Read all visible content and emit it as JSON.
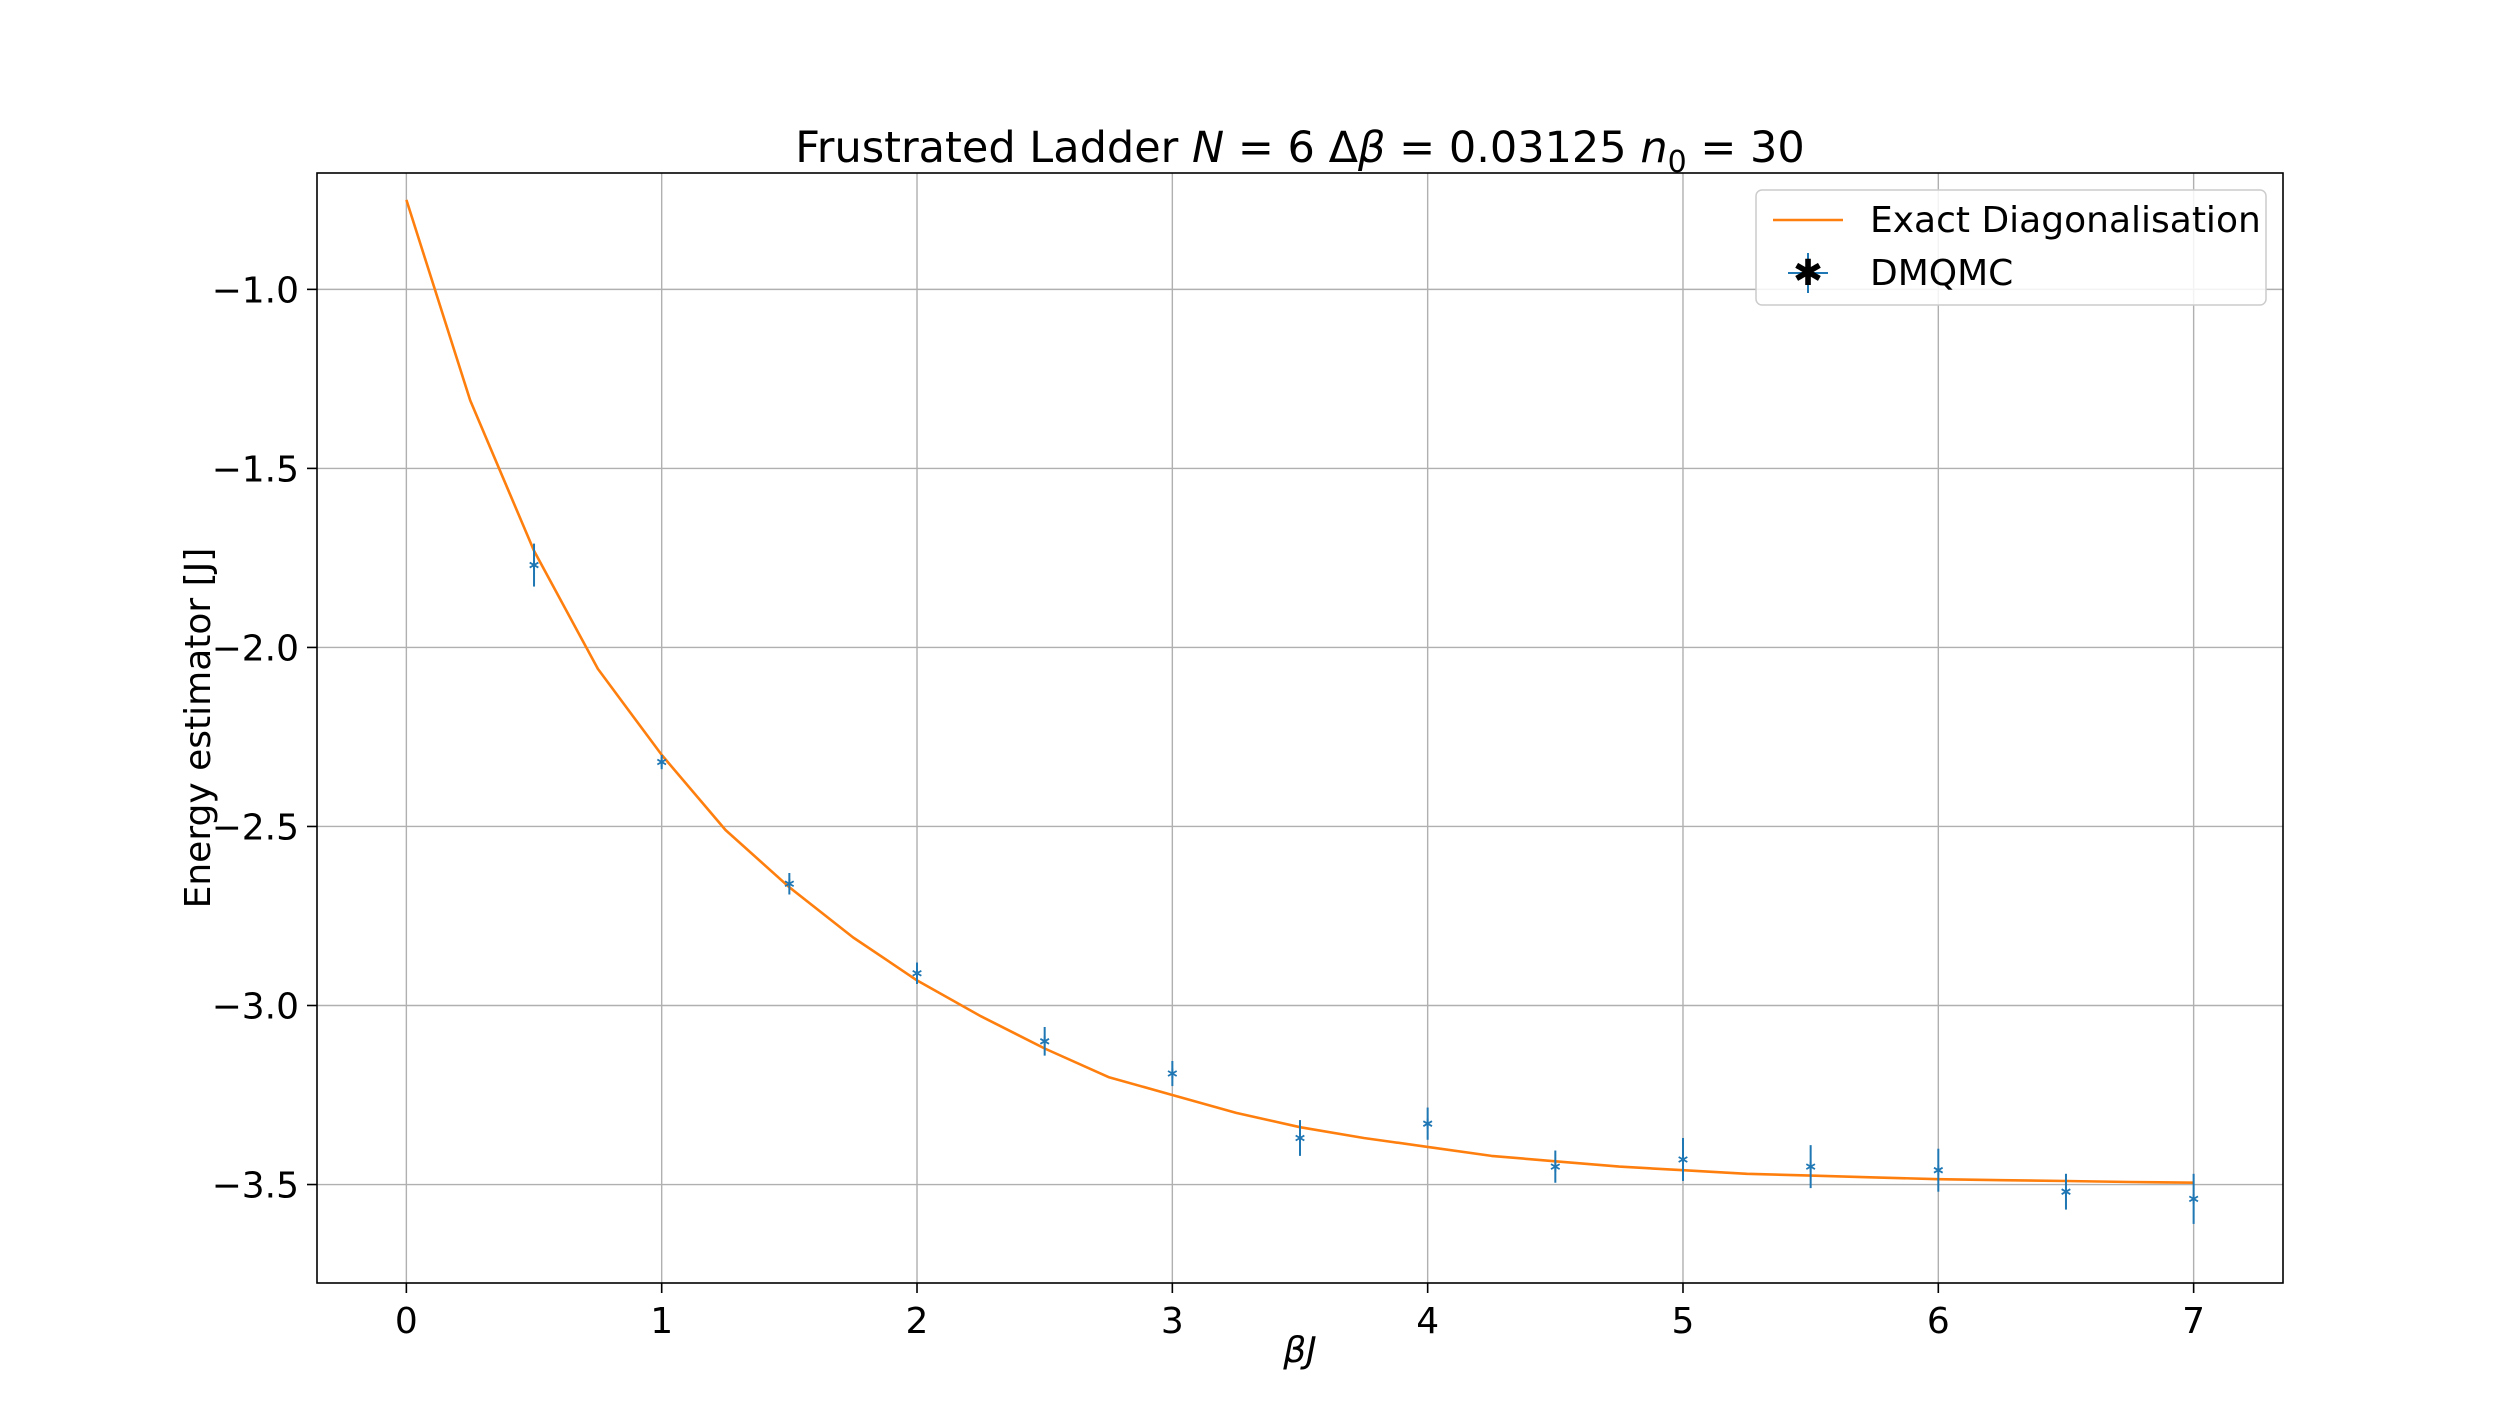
{
  "chart_data": {
    "type": "line",
    "title": {
      "prefix": "Frustrated Ladder ",
      "n_var": "N",
      "n_eq": " = 6 ",
      "delta": "Δ",
      "beta": "β",
      "dbeta_eq": " = 0.03125 ",
      "n0_var": "n",
      "n0_sub": "0",
      "n0_eq": " = 30"
    },
    "xlabel": "βJ",
    "ylabel": "Energy estimator [J]",
    "xlim": [
      -0.35,
      7.35
    ],
    "ylim": [
      -3.775,
      -0.675
    ],
    "x_ticks": [
      0,
      1,
      2,
      3,
      4,
      5,
      6,
      7
    ],
    "x_tick_labels": [
      "0",
      "1",
      "2",
      "3",
      "4",
      "5",
      "6",
      "7"
    ],
    "y_ticks": [
      -1.0,
      -1.5,
      -2.0,
      -2.5,
      -3.0,
      -3.5
    ],
    "y_tick_labels": [
      "−1.0",
      "−1.5",
      "−2.0",
      "−2.5",
      "−3.0",
      "−3.5"
    ],
    "grid": true,
    "legend_position": "top-right",
    "series": [
      {
        "name": "Exact Diagonalisation",
        "kind": "line",
        "color": "#ff7f0e",
        "x": [
          0,
          0.25,
          0.5,
          0.75,
          1.0,
          1.25,
          1.5,
          1.75,
          2.0,
          2.25,
          2.5,
          2.75,
          3.0,
          3.25,
          3.5,
          3.75,
          4.0,
          4.25,
          4.5,
          4.75,
          5.0,
          5.25,
          5.5,
          5.75,
          6.0,
          6.25,
          6.5,
          6.75,
          7.0
        ],
        "y": [
          -0.75,
          -1.31,
          -1.73,
          -2.06,
          -2.3,
          -2.51,
          -2.67,
          -2.81,
          -2.93,
          -3.03,
          -3.12,
          -3.2,
          -3.25,
          -3.3,
          -3.34,
          -3.37,
          -3.395,
          -3.42,
          -3.435,
          -3.45,
          -3.46,
          -3.47,
          -3.475,
          -3.48,
          -3.485,
          -3.488,
          -3.49,
          -3.493,
          -3.495
        ]
      },
      {
        "name": "DMQMC",
        "kind": "errorbar",
        "color": "#1f77b4",
        "x": [
          0.5,
          1.0,
          1.5,
          2.0,
          2.5,
          3.0,
          3.5,
          4.0,
          4.5,
          5.0,
          5.5,
          6.0,
          6.5,
          7.0
        ],
        "y": [
          -1.77,
          -2.32,
          -2.66,
          -2.91,
          -3.1,
          -3.19,
          -3.37,
          -3.33,
          -3.45,
          -3.43,
          -3.45,
          -3.46,
          -3.52,
          -3.54
        ],
        "yerr": [
          0.06,
          0.02,
          0.03,
          0.03,
          0.04,
          0.035,
          0.05,
          0.045,
          0.045,
          0.06,
          0.06,
          0.06,
          0.05,
          0.07
        ]
      }
    ]
  }
}
